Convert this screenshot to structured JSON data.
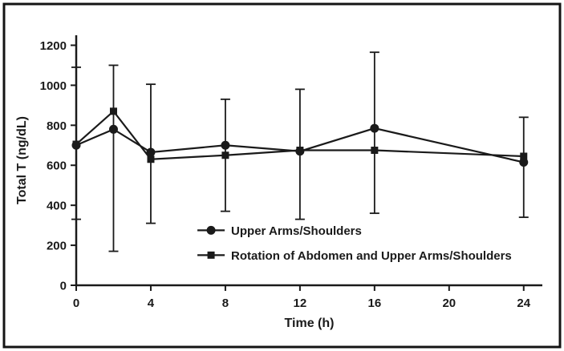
{
  "figure": {
    "background": "#ffffff",
    "border_color": "#141414",
    "ink_color": "#1a1a1a"
  },
  "chart_data": {
    "type": "line",
    "title": "",
    "xlabel": "Time (h)",
    "ylabel": "Total T (ng/dL)",
    "xlim": [
      0,
      25
    ],
    "ylim": [
      0,
      1250
    ],
    "xticks": [
      0,
      4,
      8,
      12,
      16,
      20,
      24
    ],
    "yticks": [
      0,
      200,
      400,
      600,
      800,
      1000,
      1200
    ],
    "grid": false,
    "legend_position": "inside-bottom-center",
    "series": [
      {
        "name": "Upper Arms/Shoulders",
        "marker": "circle",
        "x": [
          0,
          2,
          4,
          8,
          12,
          16,
          24
        ],
        "y": [
          700,
          780,
          665,
          700,
          670,
          785,
          615
        ],
        "err_low": [
          330,
          170,
          310,
          370,
          330,
          360,
          340
        ],
        "err_high": [
          1090,
          1100,
          1005,
          930,
          980,
          1165,
          840
        ]
      },
      {
        "name": "Rotation of Abdomen and Upper Arms/Shoulders",
        "marker": "square",
        "x": [
          0,
          2,
          4,
          8,
          12,
          16,
          24
        ],
        "y": [
          705,
          870,
          630,
          650,
          675,
          675,
          645
        ],
        "err_low": [],
        "err_high": []
      }
    ]
  }
}
